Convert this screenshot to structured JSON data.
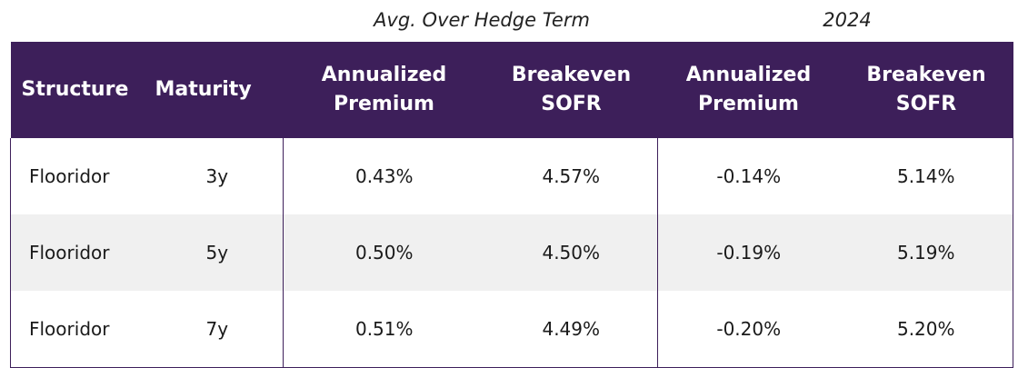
{
  "group_headers": {
    "avg_over_hedge_term": "Avg. Over Hedge Term",
    "year": "2024"
  },
  "columns": {
    "structure": "Structure",
    "maturity": "Maturity",
    "annualized_premium_1": "Annualized",
    "annualized_premium_2": "Premium",
    "breakeven_sofr_1": "Breakeven",
    "breakeven_sofr_2": "SOFR"
  },
  "rows": [
    {
      "structure": "Flooridor",
      "maturity": "3y",
      "avg_annualized_premium": "0.43%",
      "avg_breakeven_sofr": "4.57%",
      "y2024_annualized_premium": "-0.14%",
      "y2024_breakeven_sofr": "5.14%"
    },
    {
      "structure": "Flooridor",
      "maturity": "5y",
      "avg_annualized_premium": "0.50%",
      "avg_breakeven_sofr": "4.50%",
      "y2024_annualized_premium": "-0.19%",
      "y2024_breakeven_sofr": "5.19%"
    },
    {
      "structure": "Flooridor",
      "maturity": "7y",
      "avg_annualized_premium": "0.51%",
      "avg_breakeven_sofr": "4.49%",
      "y2024_annualized_premium": "-0.20%",
      "y2024_breakeven_sofr": "5.20%"
    }
  ],
  "colors": {
    "header_background": "#3d1f5a",
    "header_text": "#ffffff",
    "alt_row_background": "#f0f0f0",
    "border": "#3d1f5a"
  }
}
